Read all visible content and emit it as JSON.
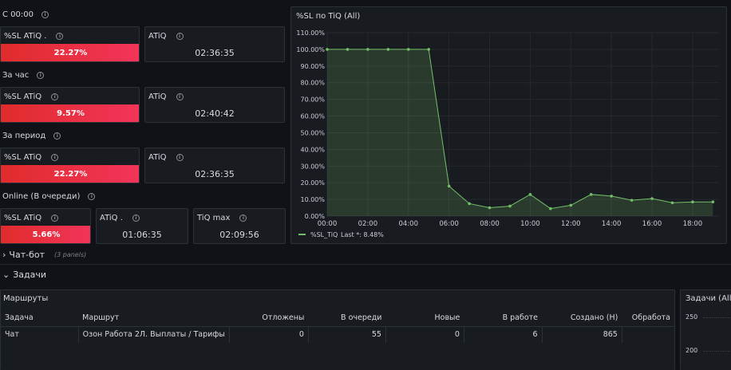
{
  "top_section": {
    "label": "С 00:00"
  },
  "hour_section": {
    "label": "За час"
  },
  "period_section": {
    "label": "За период"
  },
  "online_section": {
    "label": "Online (В очереди)"
  },
  "stats": {
    "s1": {
      "title": "%SL ATiQ .",
      "value": "22.27%"
    },
    "s2": {
      "title": "ATiQ",
      "value": "02:36:35"
    },
    "h1": {
      "title": "%SL ATiQ",
      "value": "9.57%"
    },
    "h2": {
      "title": "ATiQ",
      "value": "02:40:42"
    },
    "p1": {
      "title": "%SL ATiQ",
      "value": "22.27%"
    },
    "p2": {
      "title": "ATiQ",
      "value": "02:36:35"
    },
    "o1": {
      "title": "%SL ATiQ",
      "value": "5.66%"
    },
    "o2": {
      "title": "ATiQ .",
      "value": "01:06:35"
    },
    "o3": {
      "title": "TiQ max",
      "value": "02:09:56"
    }
  },
  "chart_panel": {
    "title": "%SL по TiQ (All)"
  },
  "chart_data": {
    "type": "area",
    "title": "%SL по TiQ (All)",
    "x": [
      "00:00",
      "01:00",
      "02:00",
      "03:00",
      "04:00",
      "05:00",
      "06:00",
      "07:00",
      "08:00",
      "09:00",
      "10:00",
      "11:00",
      "12:00",
      "13:00",
      "14:00",
      "15:00",
      "16:00",
      "17:00",
      "18:00",
      "19:00"
    ],
    "series": [
      {
        "name": "%SL_TiQ",
        "values": [
          100,
          100,
          100,
          100,
          100,
          100,
          18,
          7.5,
          5,
          6,
          13,
          4.5,
          6.5,
          13,
          12,
          9.5,
          10.5,
          8,
          8.5,
          8.5
        ],
        "color": "#73bf69"
      }
    ],
    "yticks": [
      "0.00%",
      "10.00%",
      "20.00%",
      "30.00%",
      "40.00%",
      "50.00%",
      "60.00%",
      "70.00%",
      "80.00%",
      "90.00%",
      "100.00%",
      "110.00%"
    ],
    "xticks": [
      "00:00",
      "02:00",
      "04:00",
      "06:00",
      "08:00",
      "10:00",
      "12:00",
      "14:00",
      "16:00",
      "18:00"
    ],
    "ylim": [
      0,
      110
    ],
    "grid": true,
    "legend": {
      "placement": "bottom-left",
      "label": "%SL_TiQ",
      "last": "Last *: 8.48%"
    }
  },
  "chatbot_row": {
    "label": "Чат-бот",
    "sub": "(3 panels)"
  },
  "tasks_row": {
    "label": "Задачи"
  },
  "routes_panel": {
    "title": "Маршруты",
    "columns": [
      "Задача",
      "Маршрут",
      "Отложены",
      "В очереди",
      "Новые",
      "В работе",
      "Создано (Н)",
      "Обработа"
    ],
    "rows": [
      [
        "Чат",
        "Озон Работа 2Л. Выплаты / Тарифы",
        "0",
        "55",
        "0",
        "6",
        "865",
        ""
      ]
    ]
  },
  "tasks_panel": {
    "title": "Задачи (All)",
    "yticks": [
      "250",
      "200"
    ]
  },
  "colors": {
    "bg": "#111217",
    "panel": "#181b1f",
    "accent_red": "#e02c2c",
    "accent_green": "#73bf69"
  }
}
